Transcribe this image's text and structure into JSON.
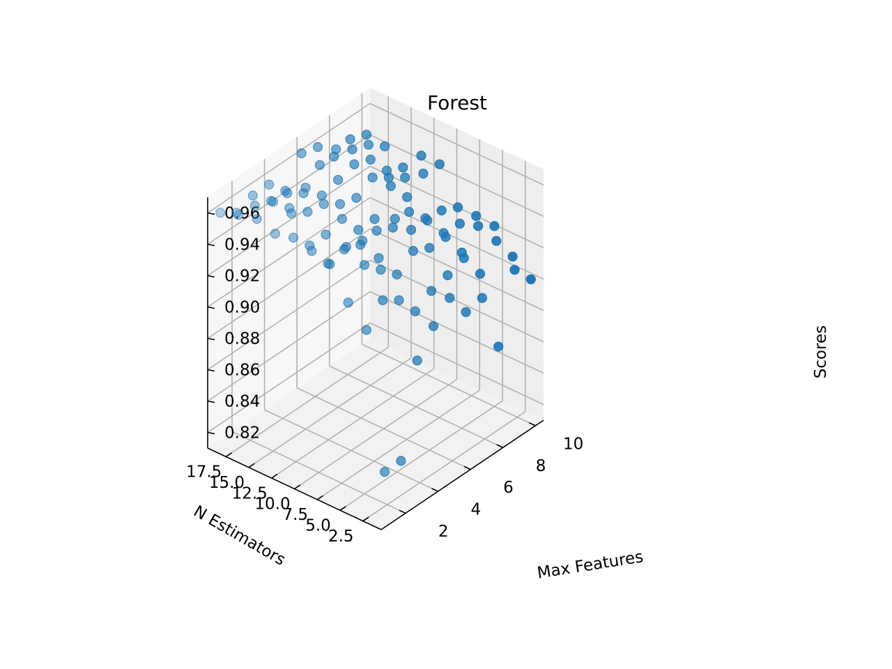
{
  "chart_data": {
    "type": "scatter",
    "projection": "3d",
    "title": "Forest",
    "xlabel": "N Estimators",
    "ylabel": "Max Features",
    "zlabel": "Scores",
    "xlim": [
      0.5,
      10.5
    ],
    "ylim": [
      0.5,
      19.5
    ],
    "zlim": [
      0.81,
      0.97
    ],
    "xticks": [
      "2",
      "4",
      "6",
      "8",
      "10"
    ],
    "yticks": [
      "2.5",
      "5.0",
      "7.5",
      "10.0",
      "12.5",
      "15.0",
      "17.5"
    ],
    "zticks": [
      "0.82",
      "0.84",
      "0.86",
      "0.88",
      "0.90",
      "0.92",
      "0.94",
      "0.96"
    ],
    "grid": true,
    "marker_color": "#1f77b4",
    "points": [
      [
        1,
        1,
        0.842
      ],
      [
        1,
        3,
        0.927
      ],
      [
        1,
        5,
        0.939
      ],
      [
        1,
        7,
        0.958
      ],
      [
        1,
        9,
        0.961
      ],
      [
        1,
        11,
        0.964
      ],
      [
        1,
        13,
        0.961
      ],
      [
        1,
        15,
        0.965
      ],
      [
        1,
        17,
        0.962
      ],
      [
        1,
        19,
        0.958
      ],
      [
        2,
        1,
        0.842
      ],
      [
        2,
        3,
        0.939
      ],
      [
        2,
        5,
        0.956
      ],
      [
        2,
        7,
        0.962
      ],
      [
        2,
        9,
        0.946
      ],
      [
        2,
        11,
        0.952
      ],
      [
        2,
        13,
        0.967
      ],
      [
        2,
        15,
        0.969
      ],
      [
        2,
        17,
        0.961
      ],
      [
        2,
        19,
        0.951
      ],
      [
        3,
        1,
        0.899
      ],
      [
        3,
        3,
        0.932
      ],
      [
        3,
        5,
        0.946
      ],
      [
        3,
        7,
        0.959
      ],
      [
        3,
        9,
        0.948
      ],
      [
        3,
        11,
        0.952
      ],
      [
        3,
        13,
        0.961
      ],
      [
        3,
        15,
        0.958
      ],
      [
        3,
        17,
        0.957
      ],
      [
        3,
        19,
        0.955
      ],
      [
        4,
        1,
        0.914
      ],
      [
        4,
        3,
        0.918
      ],
      [
        4,
        5,
        0.936
      ],
      [
        4,
        7,
        0.941
      ],
      [
        4,
        9,
        0.944
      ],
      [
        4,
        11,
        0.955
      ],
      [
        4,
        13,
        0.959
      ],
      [
        4,
        15,
        0.964
      ],
      [
        4,
        17,
        0.955
      ],
      [
        4,
        19,
        0.955
      ],
      [
        5,
        1,
        0.925
      ],
      [
        5,
        3,
        0.924
      ],
      [
        5,
        5,
        0.944
      ],
      [
        5,
        7,
        0.959
      ],
      [
        5,
        9,
        0.946
      ],
      [
        5,
        11,
        0.941
      ],
      [
        5,
        13,
        0.952
      ],
      [
        5,
        15,
        0.952
      ],
      [
        5,
        17,
        0.948
      ],
      [
        5,
        19,
        0.944
      ],
      [
        6,
        1,
        0.909
      ],
      [
        6,
        3,
        0.927
      ],
      [
        6,
        5,
        0.939
      ],
      [
        6,
        7,
        0.945
      ],
      [
        6,
        9,
        0.941
      ],
      [
        6,
        11,
        0.941
      ],
      [
        6,
        13,
        0.949
      ],
      [
        6,
        15,
        0.955
      ],
      [
        6,
        17,
        0.959
      ],
      [
        6,
        19,
        0.961
      ],
      [
        7,
        1,
        0.911
      ],
      [
        7,
        3,
        0.931
      ],
      [
        7,
        5,
        0.939
      ],
      [
        7,
        7,
        0.944
      ],
      [
        7,
        9,
        0.944
      ],
      [
        7,
        11,
        0.955
      ],
      [
        7,
        13,
        0.955
      ],
      [
        7,
        15,
        0.958
      ],
      [
        7,
        17,
        0.962
      ],
      [
        7,
        19,
        0.958
      ],
      [
        8,
        1,
        0.873
      ],
      [
        8,
        3,
        0.914
      ],
      [
        8,
        5,
        0.922
      ],
      [
        8,
        7,
        0.929
      ],
      [
        8,
        9,
        0.933
      ],
      [
        8,
        11,
        0.941
      ],
      [
        8,
        13,
        0.948
      ],
      [
        8,
        15,
        0.954
      ],
      [
        8,
        17,
        0.955
      ],
      [
        8,
        19,
        0.945
      ],
      [
        9,
        1,
        0.915
      ],
      [
        9,
        3,
        0.928
      ],
      [
        9,
        5,
        0.932
      ],
      [
        9,
        7,
        0.928
      ],
      [
        9,
        9,
        0.931
      ],
      [
        9,
        11,
        0.949
      ],
      [
        9,
        13,
        0.941
      ],
      [
        9,
        15,
        0.94
      ],
      [
        9,
        17,
        0.951
      ],
      [
        9,
        19,
        0.949
      ],
      [
        10,
        1,
        0.902
      ],
      [
        10,
        3,
        0.911
      ],
      [
        10,
        5,
        0.925
      ],
      [
        10,
        7,
        0.926
      ],
      [
        10,
        9,
        0.926
      ],
      [
        10,
        11,
        0.948
      ],
      [
        10,
        13,
        0.948
      ],
      [
        10,
        15,
        0.935
      ],
      [
        10,
        17,
        0.943
      ],
      [
        10,
        19,
        0.945
      ]
    ]
  }
}
